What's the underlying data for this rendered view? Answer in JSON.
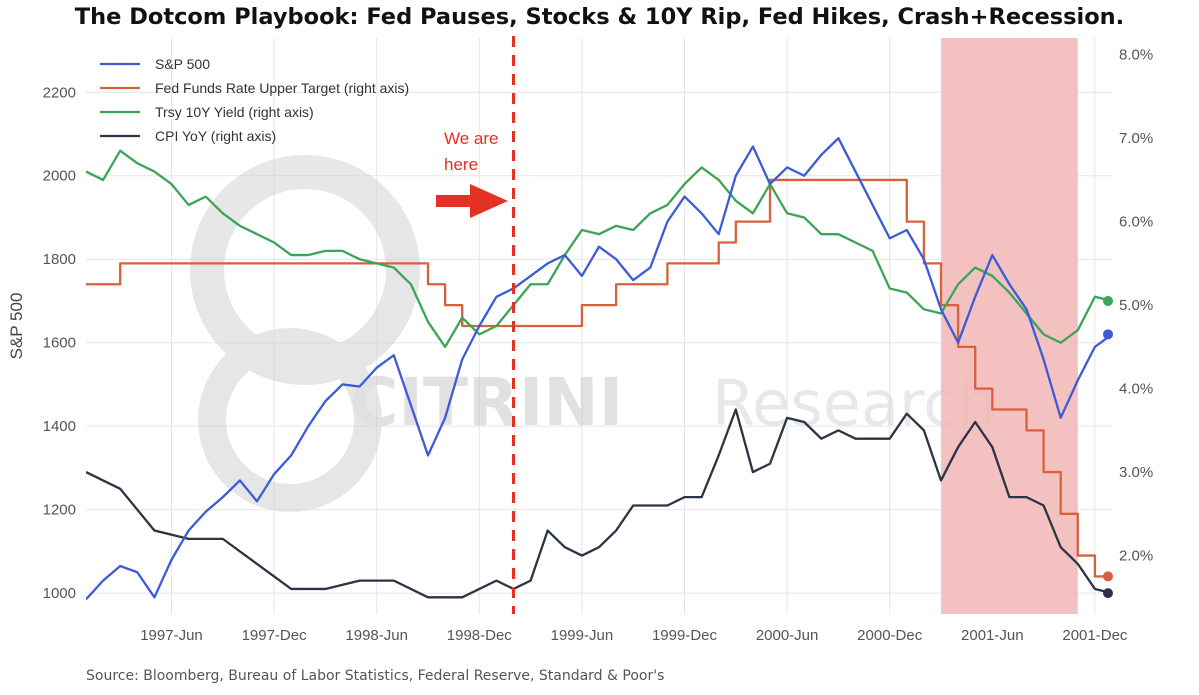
{
  "chart_data": {
    "type": "line",
    "title": "The Dotcom Playbook: Fed Pauses, Stocks & 10Y Rip, Fed Hikes, Crash+Recession.",
    "ylabel": "S&P 500",
    "ylim": [
      950,
      2330
    ],
    "y2lim": [
      1.3,
      8.2
    ],
    "y_ticks": [
      "1000",
      "1200",
      "1400",
      "1600",
      "1800",
      "2000",
      "2200"
    ],
    "y2_ticks": [
      "2.0%",
      "3.0%",
      "4.0%",
      "5.0%",
      "6.0%",
      "7.0%",
      "8.0%"
    ],
    "x_tick_labels": [
      "1997-Jun",
      "1997-Dec",
      "1998-Jun",
      "1998-Dec",
      "1999-Jun",
      "1999-Dec",
      "2000-Jun",
      "2000-Dec",
      "2001-Jun",
      "2001-Dec"
    ],
    "x_range": [
      "1997-01",
      "2002-01"
    ],
    "grid": true,
    "legend_position": "top-left",
    "series": [
      {
        "name": "S&P 500",
        "axis": "left",
        "color": "#3d5bd9",
        "points": [
          [
            "1997-01",
            985
          ],
          [
            "1997-02",
            1030
          ],
          [
            "1997-03",
            1065
          ],
          [
            "1997-04",
            1050
          ],
          [
            "1997-05",
            990
          ],
          [
            "1997-06",
            1080
          ],
          [
            "1997-07",
            1150
          ],
          [
            "1997-08",
            1195
          ],
          [
            "1997-09",
            1230
          ],
          [
            "1997-10",
            1270
          ],
          [
            "1997-11",
            1220
          ],
          [
            "1997-12",
            1285
          ],
          [
            "1998-01",
            1330
          ],
          [
            "1998-02",
            1400
          ],
          [
            "1998-03",
            1460
          ],
          [
            "1998-04",
            1500
          ],
          [
            "1998-05",
            1495
          ],
          [
            "1998-06",
            1540
          ],
          [
            "1998-07",
            1570
          ],
          [
            "1998-08",
            1450
          ],
          [
            "1998-09",
            1330
          ],
          [
            "1998-10",
            1420
          ],
          [
            "1998-11",
            1560
          ],
          [
            "1998-12",
            1640
          ],
          [
            "1999-01",
            1710
          ],
          [
            "1999-02",
            1730
          ],
          [
            "1999-03",
            1760
          ],
          [
            "1999-04",
            1790
          ],
          [
            "1999-05",
            1810
          ],
          [
            "1999-06",
            1760
          ],
          [
            "1999-07",
            1830
          ],
          [
            "1999-08",
            1800
          ],
          [
            "1999-09",
            1750
          ],
          [
            "1999-10",
            1780
          ],
          [
            "1999-11",
            1890
          ],
          [
            "1999-12",
            1950
          ],
          [
            "2000-01",
            1910
          ],
          [
            "2000-02",
            1860
          ],
          [
            "2000-03",
            2000
          ],
          [
            "2000-04",
            2070
          ],
          [
            "2000-05",
            1980
          ],
          [
            "2000-06",
            2020
          ],
          [
            "2000-07",
            2000
          ],
          [
            "2000-08",
            2050
          ],
          [
            "2000-09",
            2090
          ],
          [
            "2000-10",
            2010
          ],
          [
            "2000-11",
            1930
          ],
          [
            "2000-12",
            1850
          ],
          [
            "2001-01",
            1870
          ],
          [
            "2001-02",
            1800
          ],
          [
            "2001-03",
            1680
          ],
          [
            "2001-04",
            1600
          ],
          [
            "2001-05",
            1710
          ],
          [
            "2001-06",
            1810
          ],
          [
            "2001-07",
            1740
          ],
          [
            "2001-08",
            1680
          ],
          [
            "2001-09",
            1560
          ],
          [
            "2001-10",
            1420
          ],
          [
            "2001-11",
            1510
          ],
          [
            "2001-12",
            1590
          ],
          [
            "2002-01",
            1620
          ]
        ]
      },
      {
        "name": "Fed Funds Rate Upper Target (right axis)",
        "axis": "right",
        "color": "#d9603b",
        "points": [
          [
            "1997-01",
            5.25
          ],
          [
            "1997-03",
            5.5
          ],
          [
            "1998-09",
            5.25
          ],
          [
            "1998-10",
            5.0
          ],
          [
            "1998-11",
            4.75
          ],
          [
            "1999-06",
            5.0
          ],
          [
            "1999-08",
            5.25
          ],
          [
            "1999-11",
            5.5
          ],
          [
            "2000-02",
            5.75
          ],
          [
            "2000-03",
            6.0
          ],
          [
            "2000-05",
            6.5
          ],
          [
            "2001-01",
            6.0
          ],
          [
            "2001-02",
            5.5
          ],
          [
            "2001-03",
            5.0
          ],
          [
            "2001-04",
            4.5
          ],
          [
            "2001-05",
            4.0
          ],
          [
            "2001-06",
            3.75
          ],
          [
            "2001-08",
            3.5
          ],
          [
            "2001-09",
            3.0
          ],
          [
            "2001-10",
            2.5
          ],
          [
            "2001-11",
            2.0
          ],
          [
            "2001-12",
            1.75
          ],
          [
            "2002-01",
            1.75
          ]
        ]
      },
      {
        "name": "Trsy 10Y Yield (right axis)",
        "axis": "right",
        "color": "#3aa655",
        "points": [
          [
            "1997-01",
            6.6
          ],
          [
            "1997-02",
            6.5
          ],
          [
            "1997-03",
            6.85
          ],
          [
            "1997-04",
            6.7
          ],
          [
            "1997-05",
            6.6
          ],
          [
            "1997-06",
            6.45
          ],
          [
            "1997-07",
            6.2
          ],
          [
            "1997-08",
            6.3
          ],
          [
            "1997-09",
            6.1
          ],
          [
            "1997-10",
            5.95
          ],
          [
            "1997-11",
            5.85
          ],
          [
            "1997-12",
            5.75
          ],
          [
            "1998-01",
            5.6
          ],
          [
            "1998-02",
            5.6
          ],
          [
            "1998-03",
            5.65
          ],
          [
            "1998-04",
            5.65
          ],
          [
            "1998-05",
            5.55
          ],
          [
            "1998-06",
            5.5
          ],
          [
            "1998-07",
            5.45
          ],
          [
            "1998-08",
            5.25
          ],
          [
            "1998-09",
            4.8
          ],
          [
            "1998-10",
            4.5
          ],
          [
            "1998-11",
            4.85
          ],
          [
            "1998-12",
            4.65
          ],
          [
            "1999-01",
            4.75
          ],
          [
            "1999-02",
            5.0
          ],
          [
            "1999-03",
            5.25
          ],
          [
            "1999-04",
            5.25
          ],
          [
            "1999-05",
            5.6
          ],
          [
            "1999-06",
            5.9
          ],
          [
            "1999-07",
            5.85
          ],
          [
            "1999-08",
            5.95
          ],
          [
            "1999-09",
            5.9
          ],
          [
            "1999-10",
            6.1
          ],
          [
            "1999-11",
            6.2
          ],
          [
            "1999-12",
            6.45
          ],
          [
            "2000-01",
            6.65
          ],
          [
            "2000-02",
            6.5
          ],
          [
            "2000-03",
            6.25
          ],
          [
            "2000-04",
            6.1
          ],
          [
            "2000-05",
            6.45
          ],
          [
            "2000-06",
            6.1
          ],
          [
            "2000-07",
            6.05
          ],
          [
            "2000-08",
            5.85
          ],
          [
            "2000-09",
            5.85
          ],
          [
            "2000-10",
            5.75
          ],
          [
            "2000-11",
            5.65
          ],
          [
            "2000-12",
            5.2
          ],
          [
            "2001-01",
            5.15
          ],
          [
            "2001-02",
            4.95
          ],
          [
            "2001-03",
            4.9
          ],
          [
            "2001-04",
            5.25
          ],
          [
            "2001-05",
            5.45
          ],
          [
            "2001-06",
            5.35
          ],
          [
            "2001-07",
            5.15
          ],
          [
            "2001-08",
            4.9
          ],
          [
            "2001-09",
            4.65
          ],
          [
            "2001-10",
            4.55
          ],
          [
            "2001-11",
            4.7
          ],
          [
            "2001-12",
            5.1
          ],
          [
            "2002-01",
            5.05
          ]
        ]
      },
      {
        "name": "CPI YoY (right axis)",
        "axis": "right",
        "color": "#2b3444",
        "points": [
          [
            "1997-01",
            3.0
          ],
          [
            "1997-03",
            2.8
          ],
          [
            "1997-05",
            2.3
          ],
          [
            "1997-07",
            2.2
          ],
          [
            "1997-09",
            2.2
          ],
          [
            "1997-11",
            1.9
          ],
          [
            "1998-01",
            1.6
          ],
          [
            "1998-03",
            1.6
          ],
          [
            "1998-05",
            1.7
          ],
          [
            "1998-07",
            1.7
          ],
          [
            "1998-09",
            1.5
          ],
          [
            "1998-11",
            1.5
          ],
          [
            "1999-01",
            1.7
          ],
          [
            "1999-02",
            1.6
          ],
          [
            "1999-03",
            1.7
          ],
          [
            "1999-04",
            2.3
          ],
          [
            "1999-05",
            2.1
          ],
          [
            "1999-06",
            2.0
          ],
          [
            "1999-07",
            2.1
          ],
          [
            "1999-08",
            2.3
          ],
          [
            "1999-09",
            2.6
          ],
          [
            "1999-10",
            2.6
          ],
          [
            "1999-11",
            2.6
          ],
          [
            "1999-12",
            2.7
          ],
          [
            "2000-01",
            2.7
          ],
          [
            "2000-02",
            3.2
          ],
          [
            "2000-03",
            3.75
          ],
          [
            "2000-04",
            3.0
          ],
          [
            "2000-05",
            3.1
          ],
          [
            "2000-06",
            3.65
          ],
          [
            "2000-07",
            3.6
          ],
          [
            "2000-08",
            3.4
          ],
          [
            "2000-09",
            3.5
          ],
          [
            "2000-10",
            3.4
          ],
          [
            "2000-11",
            3.4
          ],
          [
            "2000-12",
            3.4
          ],
          [
            "2001-01",
            3.7
          ],
          [
            "2001-02",
            3.5
          ],
          [
            "2001-03",
            2.9
          ],
          [
            "2001-04",
            3.3
          ],
          [
            "2001-05",
            3.6
          ],
          [
            "2001-06",
            3.3
          ],
          [
            "2001-07",
            2.7
          ],
          [
            "2001-08",
            2.7
          ],
          [
            "2001-09",
            2.6
          ],
          [
            "2001-10",
            2.1
          ],
          [
            "2001-11",
            1.9
          ],
          [
            "2001-12",
            1.6
          ],
          [
            "2002-01",
            1.55
          ]
        ]
      }
    ],
    "we_are_here_date": "1999-02",
    "recession_shading": {
      "start": "2001-03",
      "end": "2001-11",
      "color": "#f2b6b6"
    },
    "annotations": [
      {
        "text_lines": [
          "We are",
          "here"
        ],
        "color": "#e53024"
      }
    ],
    "watermark": {
      "text": "CITRINI",
      "text_suffix": "Research"
    }
  },
  "source_note": "Source: Bloomberg, Bureau of Labor Statistics, Federal Reserve, Standard & Poor's"
}
